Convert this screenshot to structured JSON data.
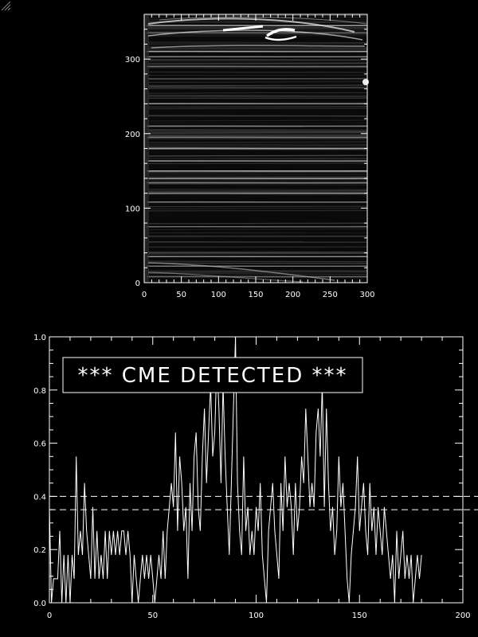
{
  "chart_data": [
    {
      "type": "heatmap",
      "title": "",
      "xlabel": "",
      "ylabel": "",
      "xlim": [
        0,
        300
      ],
      "ylim": [
        0,
        360
      ],
      "xticks": [
        "0",
        "50",
        "100",
        "150",
        "200",
        "250",
        "300"
      ],
      "yticks": [
        "0",
        "100",
        "200",
        "300"
      ],
      "bright_streaks_y": [
        8,
        22,
        35,
        75,
        108,
        120,
        134,
        140,
        150,
        163,
        180,
        195,
        210,
        240,
        290,
        303,
        310,
        335,
        345
      ]
    },
    {
      "type": "line",
      "title": "",
      "xlabel": "",
      "ylabel": "",
      "xlim": [
        0,
        200
      ],
      "ylim": [
        0,
        1.0
      ],
      "xticks": [
        "0",
        "50",
        "100",
        "150",
        "200"
      ],
      "yticks": [
        "0.0",
        "0.2",
        "0.4",
        "0.6",
        "0.8",
        "1.0"
      ],
      "thresholds": [
        0.4,
        0.35
      ],
      "annotation": "*** CME DETECTED ***",
      "series": [
        {
          "x": [
            0,
            1,
            2,
            3,
            4,
            5,
            6,
            7,
            8,
            9,
            10,
            11,
            12,
            13,
            14,
            15,
            16,
            17,
            18,
            19,
            20,
            21,
            22,
            23,
            24,
            25,
            26,
            27,
            28,
            29,
            30,
            31,
            32,
            33,
            34,
            35,
            36,
            37,
            38,
            39,
            40,
            41,
            42,
            43,
            44,
            45,
            46,
            47,
            48,
            49,
            50,
            51,
            52,
            53,
            54,
            55,
            56,
            57,
            58,
            59,
            60,
            61,
            62,
            63,
            64,
            65,
            66,
            67,
            68,
            69,
            70,
            71,
            72,
            73,
            74,
            75,
            76,
            77,
            78,
            79,
            80,
            81,
            82,
            83,
            84,
            85,
            86,
            87,
            88,
            89,
            90,
            91,
            92,
            93,
            94,
            95,
            96,
            97,
            98,
            99,
            100,
            101,
            102,
            103,
            104,
            105,
            106,
            107,
            108,
            109,
            110,
            111,
            112,
            113,
            114,
            115,
            116,
            117,
            118,
            119,
            120,
            121,
            122,
            123,
            124,
            125,
            126,
            127,
            128,
            129,
            130,
            131,
            132,
            133,
            134,
            135,
            136,
            137,
            138,
            139,
            140,
            141,
            142,
            143,
            144,
            145,
            146,
            147,
            148,
            149,
            150,
            151,
            152,
            153,
            154,
            155,
            156,
            157,
            158,
            159,
            160,
            161,
            162,
            163,
            164,
            165,
            166,
            167,
            168,
            169,
            170,
            171,
            172,
            173,
            174,
            175,
            176,
            177,
            178,
            179,
            180
          ],
          "y": [
            0.36,
            0.0,
            0.09,
            0.09,
            0.09,
            0.27,
            0.0,
            0.18,
            0.0,
            0.18,
            0.0,
            0.18,
            0.09,
            0.55,
            0.18,
            0.27,
            0.18,
            0.45,
            0.27,
            0.18,
            0.09,
            0.36,
            0.09,
            0.27,
            0.09,
            0.18,
            0.09,
            0.27,
            0.09,
            0.27,
            0.18,
            0.27,
            0.18,
            0.27,
            0.18,
            0.27,
            0.27,
            0.18,
            0.27,
            0.18,
            0.0,
            0.18,
            0.09,
            0.0,
            0.09,
            0.18,
            0.09,
            0.18,
            0.09,
            0.18,
            0.09,
            0.0,
            0.09,
            0.18,
            0.09,
            0.27,
            0.09,
            0.27,
            0.36,
            0.45,
            0.36,
            0.64,
            0.27,
            0.55,
            0.45,
            0.27,
            0.36,
            0.09,
            0.45,
            0.27,
            0.55,
            0.64,
            0.36,
            0.27,
            0.55,
            0.73,
            0.45,
            0.64,
            0.82,
            0.55,
            0.64,
            0.91,
            0.73,
            0.45,
            0.82,
            0.55,
            0.36,
            0.18,
            0.45,
            0.73,
            1.0,
            0.45,
            0.27,
            0.18,
            0.55,
            0.27,
            0.36,
            0.18,
            0.27,
            0.18,
            0.36,
            0.27,
            0.45,
            0.18,
            0.09,
            0.0,
            0.27,
            0.36,
            0.45,
            0.27,
            0.18,
            0.09,
            0.45,
            0.27,
            0.55,
            0.36,
            0.45,
            0.36,
            0.18,
            0.45,
            0.27,
            0.36,
            0.55,
            0.45,
            0.73,
            0.55,
            0.36,
            0.45,
            0.36,
            0.64,
            0.73,
            0.55,
            0.82,
            0.36,
            0.73,
            0.45,
            0.27,
            0.36,
            0.18,
            0.27,
            0.55,
            0.36,
            0.45,
            0.27,
            0.09,
            0.0,
            0.18,
            0.27,
            0.36,
            0.55,
            0.27,
            0.36,
            0.45,
            0.27,
            0.18,
            0.45,
            0.27,
            0.36,
            0.18,
            0.36,
            0.27,
            0.18,
            0.36,
            0.27,
            0.18,
            0.09,
            0.18,
            0.0,
            0.27,
            0.09,
            0.18,
            0.27,
            0.09,
            0.18,
            0.09,
            0.18,
            0.0,
            0.09,
            0.18,
            0.09,
            0.18
          ]
        }
      ]
    }
  ]
}
